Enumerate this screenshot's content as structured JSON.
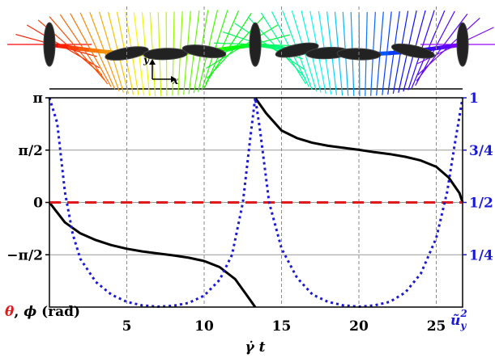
{
  "chart_data": {
    "type": "line",
    "x": {
      "label": "γ̇ t",
      "range": [
        0,
        26.7
      ],
      "ticks": [
        5,
        10,
        15,
        20,
        25
      ],
      "tick_labels": [
        "5",
        "10",
        "15",
        "20",
        "25"
      ],
      "grid": "dashed-vertical"
    },
    "y_left": {
      "label_parts": [
        "θ",
        ", ",
        "ϕ",
        " (rad)"
      ],
      "range": [
        -3.1416,
        3.1416
      ],
      "ticks": [
        3.1416,
        1.5708,
        0,
        -1.5708
      ],
      "tick_labels": [
        "π",
        "π/2",
        "0",
        "−π/2"
      ],
      "grid": "solid-horizontal"
    },
    "y_right": {
      "label": "ũy²",
      "label_base": "ũ",
      "label_sub": "y",
      "label_sup": "2",
      "range": [
        0,
        1
      ],
      "ticks": [
        1,
        0.75,
        0.5,
        0.25
      ],
      "tick_labels": [
        "1",
        "3/4",
        "1/2",
        "1/4"
      ]
    },
    "series": [
      {
        "id": "phi",
        "color": "#000000",
        "style": "solid",
        "axis": "left",
        "segments": [
          [
            [
              0,
              0
            ],
            [
              0.5,
              -0.3
            ],
            [
              1,
              -0.6
            ],
            [
              2,
              -0.93
            ],
            [
              3,
              -1.13
            ],
            [
              4,
              -1.28
            ],
            [
              5,
              -1.39
            ],
            [
              6,
              -1.47
            ],
            [
              7,
              -1.53
            ],
            [
              8,
              -1.59
            ],
            [
              9,
              -1.66
            ],
            [
              10,
              -1.76
            ],
            [
              11,
              -1.94
            ],
            [
              12,
              -2.3
            ],
            [
              12.7,
              -2.75
            ],
            [
              13.3,
              -3.1416
            ]
          ],
          [
            [
              13.3,
              3.1416
            ],
            [
              14,
              2.68
            ],
            [
              15,
              2.16
            ],
            [
              16,
              1.93
            ],
            [
              17,
              1.79
            ],
            [
              18,
              1.7
            ],
            [
              19,
              1.64
            ],
            [
              20,
              1.58
            ],
            [
              21,
              1.51
            ],
            [
              22,
              1.45
            ],
            [
              23,
              1.37
            ],
            [
              24,
              1.26
            ],
            [
              25,
              1.07
            ],
            [
              25.8,
              0.75
            ],
            [
              26.5,
              0.28
            ],
            [
              26.7,
              0
            ]
          ]
        ]
      },
      {
        "id": "theta",
        "color": "#e01a1a",
        "style": "dashed",
        "axis": "left",
        "segments": [
          [
            [
              0,
              0
            ],
            [
              26.7,
              0
            ]
          ]
        ]
      },
      {
        "id": "uy2",
        "color": "#1a1ad6",
        "style": "dotted",
        "axis": "right",
        "segments": [
          [
            [
              0,
              1
            ],
            [
              0.5,
              0.88
            ],
            [
              1,
              0.55
            ],
            [
              1.5,
              0.35
            ],
            [
              2,
              0.23
            ],
            [
              3,
              0.12
            ],
            [
              4,
              0.06
            ],
            [
              5,
              0.025
            ],
            [
              6,
              0.008
            ],
            [
              7,
              0.002
            ],
            [
              8,
              0.006
            ],
            [
              9,
              0.02
            ],
            [
              10,
              0.055
            ],
            [
              11,
              0.13
            ],
            [
              11.8,
              0.25
            ],
            [
              12.5,
              0.5
            ],
            [
              13,
              0.82
            ],
            [
              13.3,
              1
            ],
            [
              13.6,
              0.85
            ],
            [
              14.2,
              0.5
            ],
            [
              15,
              0.28
            ],
            [
              16,
              0.14
            ],
            [
              17,
              0.06
            ],
            [
              18,
              0.025
            ],
            [
              19,
              0.008
            ],
            [
              20,
              0.002
            ],
            [
              21,
              0.008
            ],
            [
              22,
              0.025
            ],
            [
              23,
              0.07
            ],
            [
              24,
              0.16
            ],
            [
              25,
              0.33
            ],
            [
              25.7,
              0.55
            ],
            [
              26.2,
              0.78
            ],
            [
              26.7,
              1
            ]
          ]
        ]
      }
    ]
  },
  "schematic": {
    "axis_x": "x",
    "axis_y": "y",
    "rotation_angles": [
      90,
      80,
      60,
      35,
      15,
      7,
      3,
      0,
      -3,
      -10,
      -25,
      -60,
      -90,
      60,
      30,
      15,
      7,
      3,
      0,
      -3,
      -8,
      -20,
      -45,
      -75,
      -90
    ],
    "ellipse_times": [
      0,
      5,
      7.5,
      10,
      13.3,
      16,
      18,
      20,
      23.5,
      26.7
    ],
    "ellipse_angles": [
      90,
      10,
      2,
      -8,
      90,
      12,
      3,
      -2,
      -12,
      90
    ]
  }
}
